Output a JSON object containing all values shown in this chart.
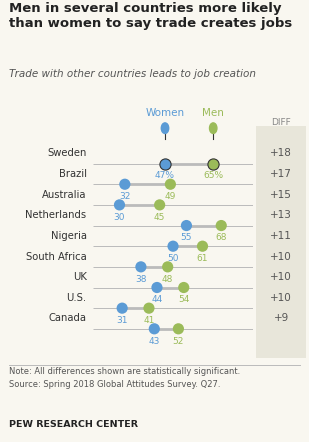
{
  "title": "Men in several countries more likely\nthan women to say trade creates jobs",
  "subtitle": "Trade with other countries leads to job creation",
  "countries": [
    "Sweden",
    "Brazil",
    "Australia",
    "Netherlands",
    "Nigeria",
    "South Africa",
    "UK",
    "U.S.",
    "Canada"
  ],
  "women": [
    47,
    32,
    30,
    55,
    50,
    38,
    44,
    31,
    43
  ],
  "men": [
    65,
    49,
    45,
    68,
    61,
    48,
    54,
    41,
    52
  ],
  "diff": [
    "+18",
    "+17",
    "+15",
    "+13",
    "+11",
    "+10",
    "+10",
    "+10",
    "+9"
  ],
  "women_color": "#5b9bd5",
  "men_color": "#9bbb59",
  "line_color": "#bbbbbb",
  "note_line1": "Note: All differences shown are statistically significant.",
  "note_line2": "Source: Spring 2018 Global Attitudes Survey. Q27.",
  "source_label": "PEW RESEARCH CENTER",
  "diff_header": "DIFF",
  "women_label": "Women",
  "men_label": "Men",
  "xlim": [
    20,
    80
  ],
  "background_color": "#f9f7f0",
  "diff_bg": "#e8e6da"
}
